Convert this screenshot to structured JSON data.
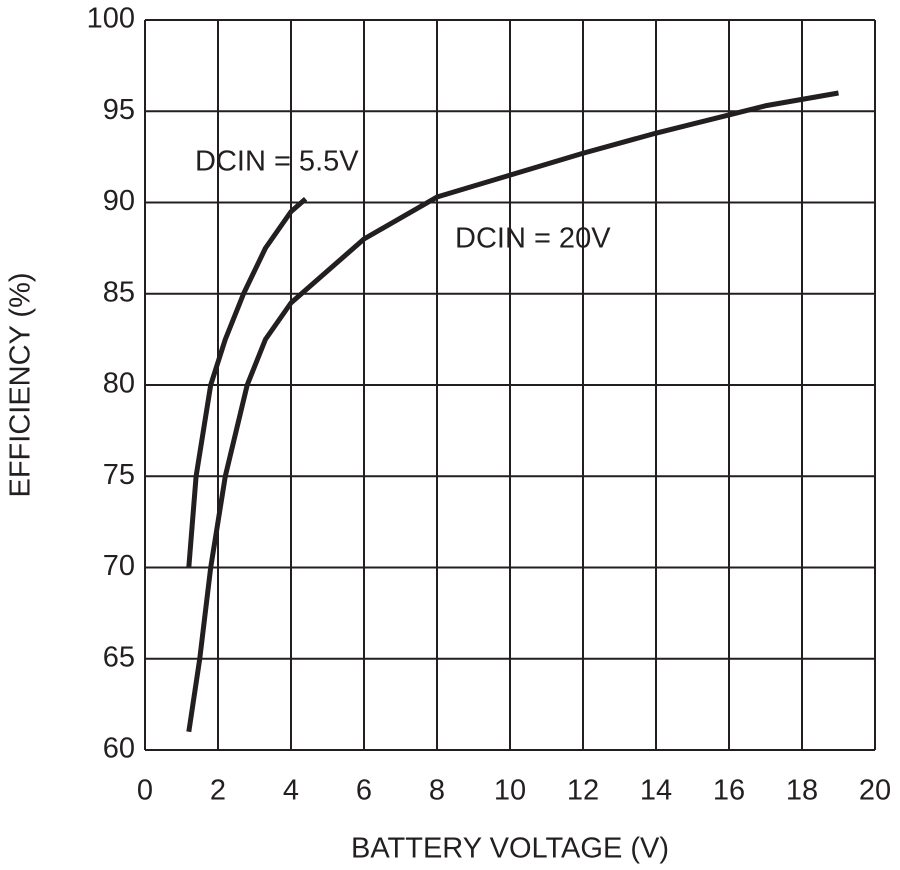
{
  "chart_data": {
    "type": "line",
    "x_label": "BATTERY VOLTAGE (V)",
    "y_label": "EFFICIENCY (%)",
    "xlim": [
      0,
      20
    ],
    "xticks": [
      0,
      2,
      4,
      6,
      8,
      10,
      12,
      14,
      16,
      18,
      20
    ],
    "ylim": [
      60,
      100
    ],
    "yticks": [
      60,
      65,
      70,
      75,
      80,
      85,
      90,
      95,
      100
    ],
    "grid": true,
    "series": [
      {
        "name": "DCIN = 5.5V",
        "color": "#231f20",
        "x": [
          1.2,
          1.4,
          1.8,
          2.2,
          2.7,
          3.3,
          4.0,
          4.4
        ],
        "values": [
          70,
          75,
          80,
          82.5,
          85,
          87.5,
          89.5,
          90.2
        ]
      },
      {
        "name": "DCIN = 20V",
        "color": "#231f20",
        "x": [
          1.2,
          1.5,
          1.8,
          2.2,
          2.8,
          3.3,
          4,
          6,
          8,
          10,
          12,
          14,
          16,
          17,
          19
        ],
        "values": [
          61,
          65,
          70,
          75,
          80,
          82.5,
          84.5,
          88,
          90.3,
          91.5,
          92.7,
          93.8,
          94.8,
          95.3,
          96
        ]
      }
    ]
  }
}
